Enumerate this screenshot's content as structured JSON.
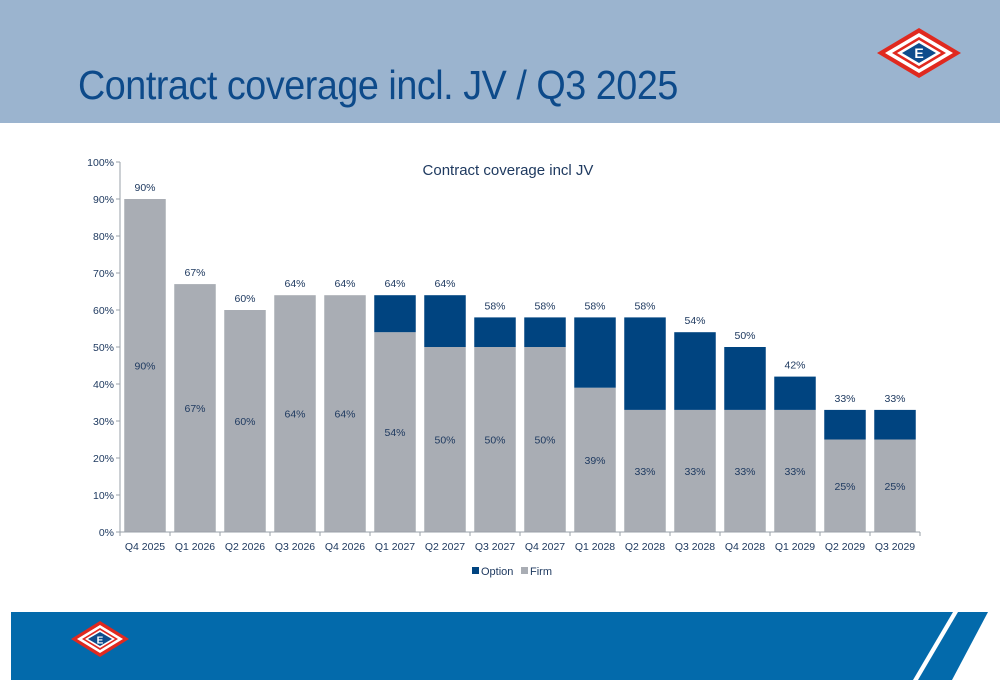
{
  "header": {
    "title": "Contract coverage incl. JV / Q3 2025",
    "logo_letter": "E"
  },
  "footer": {
    "logo_letter": "E"
  },
  "colors": {
    "header_bg": "#9bb4cf",
    "title_text": "#0d4a8a",
    "option": "#004480",
    "firm": "#a9adb4",
    "footer_band": "#036aab",
    "logo_red": "#e0291f",
    "logo_navy": "#0e4c8c"
  },
  "chart_data": {
    "type": "bar",
    "stacked": true,
    "title": "Contract coverage incl JV",
    "xlabel": "",
    "ylabel": "",
    "ylim": [
      0,
      100
    ],
    "yticks": [
      "0%",
      "10%",
      "20%",
      "30%",
      "40%",
      "50%",
      "60%",
      "70%",
      "80%",
      "90%",
      "100%"
    ],
    "grid": false,
    "legend": {
      "position": "bottom",
      "entries": [
        "Option",
        "Firm"
      ]
    },
    "categories": [
      "Q4 2025",
      "Q1 2026",
      "Q2 2026",
      "Q3 2026",
      "Q4 2026",
      "Q1 2027",
      "Q2 2027",
      "Q3 2027",
      "Q4 2027",
      "Q1 2028",
      "Q2 2028",
      "Q3 2028",
      "Q4 2028",
      "Q1 2029",
      "Q2 2029",
      "Q3 2029"
    ],
    "series": [
      {
        "name": "Firm",
        "values": [
          90,
          67,
          60,
          64,
          64,
          54,
          50,
          50,
          50,
          39,
          33,
          33,
          33,
          33,
          25,
          25
        ]
      },
      {
        "name": "Option",
        "values": [
          0,
          0,
          0,
          0,
          0,
          10,
          14,
          8,
          8,
          19,
          25,
          21,
          17,
          9,
          8,
          8
        ]
      }
    ],
    "total_labels": [
      "90%",
      "67%",
      "60%",
      "64%",
      "64%",
      "64%",
      "64%",
      "58%",
      "58%",
      "58%",
      "58%",
      "54%",
      "50%",
      "42%",
      "33%",
      "33%"
    ],
    "firm_labels": [
      "90%",
      "67%",
      "60%",
      "64%",
      "64%",
      "54%",
      "50%",
      "50%",
      "50%",
      "39%",
      "33%",
      "33%",
      "33%",
      "33%",
      "25%",
      "25%"
    ]
  }
}
